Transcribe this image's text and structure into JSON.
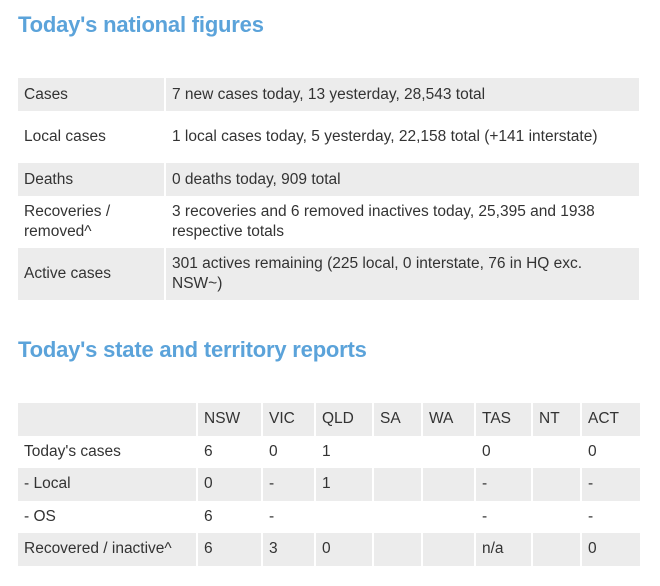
{
  "national": {
    "title": "Today's national figures",
    "rows": [
      {
        "label": "Cases",
        "value": "7 new cases today, 13 yesterday, 28,543 total"
      },
      {
        "label": "Local cases",
        "value": "1 local cases today, 5 yesterday, 22,158 total (+141 interstate)"
      },
      {
        "label": "Deaths",
        "value": "0 deaths today, 909 total"
      },
      {
        "label": "Recoveries / removed^",
        "value": "3 recoveries and 6 removed inactives today, 25,395 and 1938 respective totals"
      },
      {
        "label": "Active cases",
        "value": "301 actives remaining (225 local, 0 interstate, 76 in HQ exc. NSW~)"
      }
    ]
  },
  "states": {
    "title": "Today's state and territory reports",
    "headers": [
      "",
      "NSW",
      "VIC",
      "QLD",
      "SA",
      "WA",
      "TAS",
      "NT",
      "ACT"
    ],
    "rows": [
      [
        "Today's cases",
        "6",
        "0",
        "1",
        "",
        "",
        "0",
        "",
        "0"
      ],
      [
        "- Local",
        "0",
        "-",
        "1",
        "",
        "",
        "-",
        "",
        "-"
      ],
      [
        "- OS",
        "6",
        "-",
        "",
        "",
        "",
        "-",
        "",
        "-"
      ],
      [
        "Recovered / inactive^",
        "6",
        "3",
        "0",
        "",
        "",
        "n/a",
        "",
        "0"
      ]
    ]
  },
  "colors": {
    "heading": "#5ba3da",
    "stripe": "#ececec"
  }
}
